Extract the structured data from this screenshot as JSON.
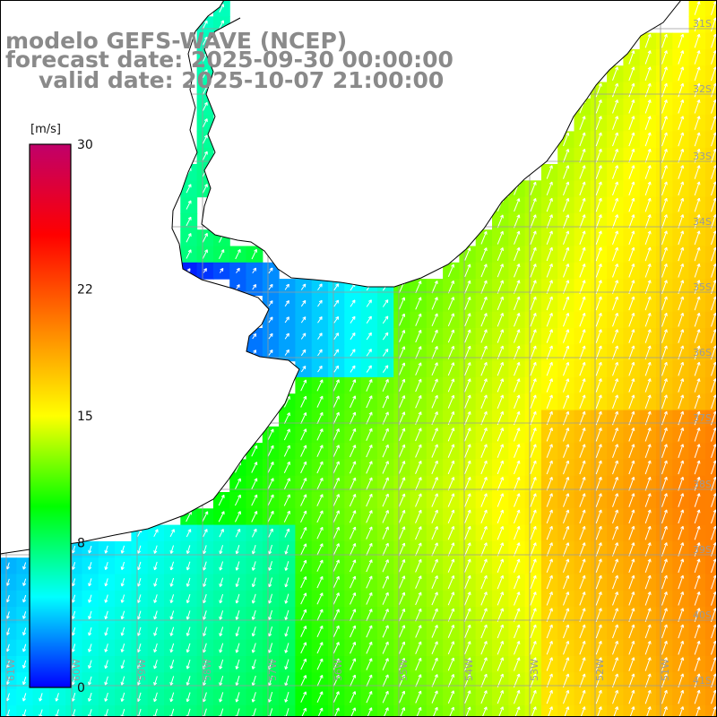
{
  "title": {
    "line1": "modelo GEFS-WAVE (NCEP)",
    "line2": "forecast date: 2025-09-30 00:00:00",
    "line3": "valid date: 2025-10-07 21:00:00"
  },
  "colorbar": {
    "unit": "[m/s]",
    "ticks": [
      "30",
      "22",
      "15",
      "8",
      "0"
    ],
    "tick_values": [
      30,
      22,
      15,
      8,
      0
    ],
    "min": 0,
    "max": 30,
    "colors": [
      "#0000ff",
      "#00ffff",
      "#00ff00",
      "#ffff00",
      "#ff8000",
      "#ff0000",
      "#c0006a"
    ]
  },
  "grid": {
    "lat_labels": [
      "31S",
      "32S",
      "33S",
      "34S",
      "35S",
      "36S",
      "37S",
      "38S",
      "39S",
      "40S",
      "41S"
    ],
    "lon_labels": [
      "61W",
      "60W",
      "59W",
      "58W",
      "57W",
      "56W",
      "55W",
      "54W",
      "53W",
      "52W",
      "51W"
    ]
  },
  "colors": {
    "grid_line": "#9a9a9a",
    "coast": "#000000",
    "land": "#ffffff",
    "title": "#8a8a8a",
    "arrow": "#ffffff"
  }
}
